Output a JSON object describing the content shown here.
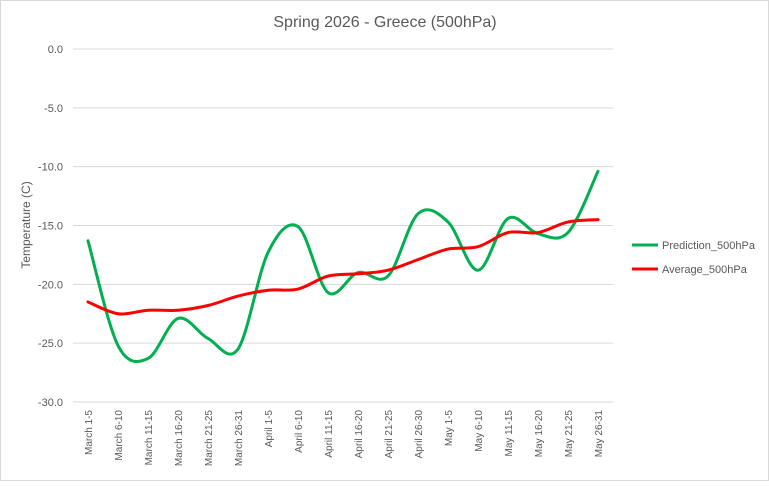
{
  "chart_data": {
    "type": "line",
    "title": "Spring 2026 - Greece (500hPa)",
    "xlabel": "",
    "ylabel": "Temperature (C)",
    "ylim": [
      -30,
      0
    ],
    "yticks": [
      "0.0",
      "-5.0",
      "-10.0",
      "-15.0",
      "-20.0",
      "-25.0",
      "-30.0"
    ],
    "ytick_values": [
      0,
      -5,
      -10,
      -15,
      -20,
      -25,
      -30
    ],
    "grid": true,
    "legend_position": "right",
    "categories": [
      "March 1-5",
      "March 6-10",
      "March 11-15",
      "March 16-20",
      "March 21-25",
      "March 26-31",
      "April 1-5",
      "April 6-10",
      "April 11-15",
      "April 16-20",
      "April 21-25",
      "April 26-30",
      "May 1-5",
      "May 6-10",
      "May 11-15",
      "May 16-20",
      "May 21-25",
      "May 26-31"
    ],
    "series": [
      {
        "name": "Prediction_500hPa",
        "color": "#00B050",
        "values": [
          -16.3,
          -25.2,
          -26.3,
          -22.9,
          -24.6,
          -25.5,
          -17.3,
          -15.1,
          -20.7,
          -19.0,
          -19.3,
          -14.0,
          -14.7,
          -18.8,
          -14.4,
          -15.7,
          -15.6,
          -10.4
        ]
      },
      {
        "name": "Average_500hPa",
        "color": "#FF0000",
        "values": [
          -21.5,
          -22.5,
          -22.2,
          -22.2,
          -21.8,
          -21.0,
          -20.5,
          -20.4,
          -19.3,
          -19.1,
          -18.8,
          -17.9,
          -17.0,
          -16.8,
          -15.6,
          -15.6,
          -14.7,
          -14.5
        ]
      }
    ]
  }
}
